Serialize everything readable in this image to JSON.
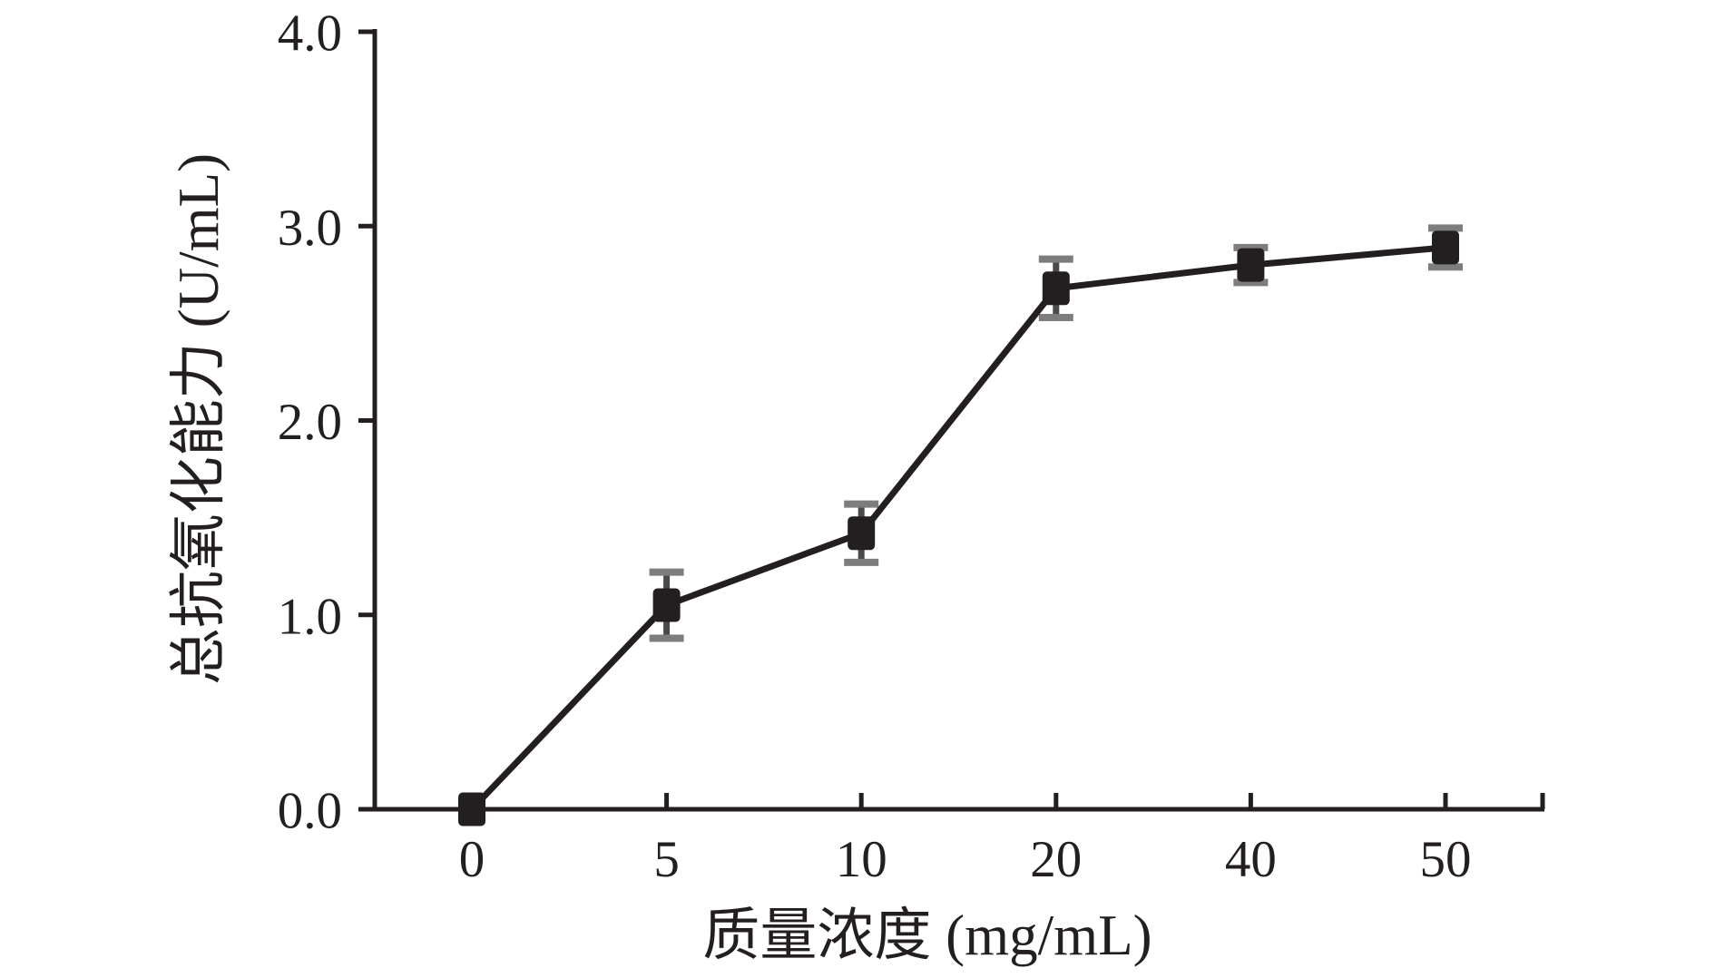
{
  "chart_data": {
    "type": "line",
    "title": "",
    "xlabel": "质量浓度 (mg/mL)",
    "ylabel": "总抗氧化能力 (U/mL)",
    "categories": [
      "0",
      "5",
      "10",
      "20",
      "40",
      "50"
    ],
    "x_values": [
      0,
      5,
      10,
      20,
      40,
      50
    ],
    "series": [
      {
        "name": "总抗氧化能力",
        "values": [
          0.0,
          1.05,
          1.42,
          2.68,
          2.8,
          2.89
        ],
        "errors": [
          0.0,
          0.17,
          0.15,
          0.15,
          0.09,
          0.1
        ]
      }
    ],
    "ylim": [
      0.0,
      4.0
    ],
    "ytick_labels": [
      "0.0",
      "1.0",
      "2.0",
      "3.0",
      "4.0"
    ],
    "ytick_values": [
      0,
      1,
      2,
      3,
      4
    ],
    "grid": false,
    "legend": "none",
    "marker": "square",
    "x_axis_end_tick": true,
    "colors": {
      "line": "#231f20",
      "marker": "#231f20",
      "error_line": "#4a4a4a",
      "error_cap": "#7d7d7d",
      "axis": "#231f20",
      "text": "#231f20",
      "background": "#ffffff"
    }
  }
}
